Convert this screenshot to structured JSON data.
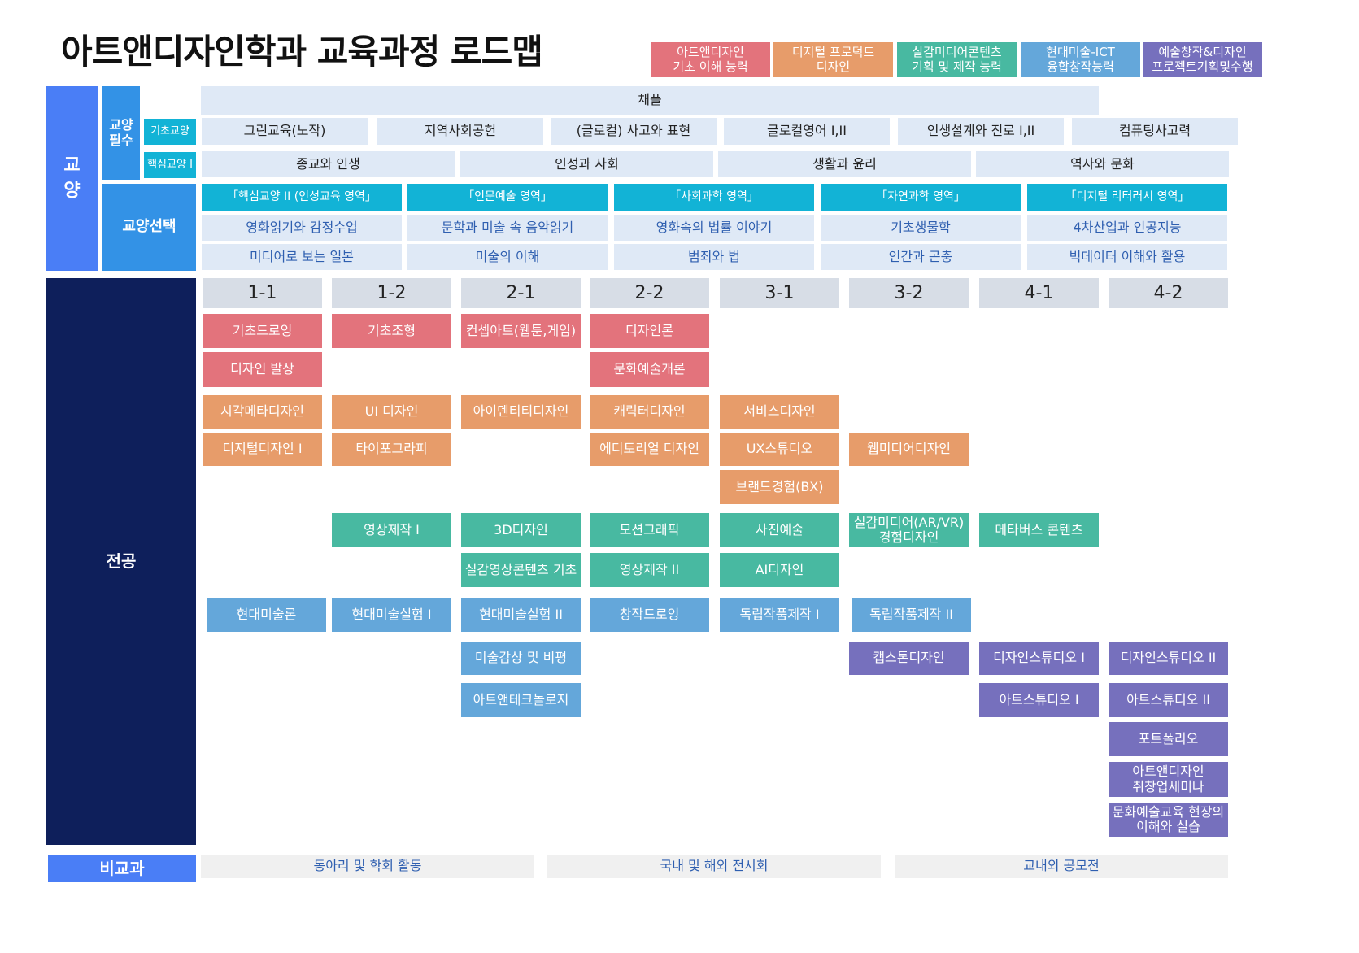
{
  "title": "아트앤디자인학과 교육과정 로드맵",
  "colors": {
    "red": "#e3737c",
    "orange": "#e79c6a",
    "teal": "#48b9a1",
    "blue": "#64a7da",
    "purple": "#7670bd",
    "navy": "#0e1f5b",
    "bright_blue": "#4a7ef6",
    "mid_blue": "#3392e6",
    "cyan": "#12b3d6"
  },
  "legend": [
    {
      "label": "아트앤디자인\n기초 이해 능력",
      "color": "#e3737c"
    },
    {
      "label": "디지털 프로덕트\n디자인",
      "color": "#e79c6a"
    },
    {
      "label": "실감미디어콘텐츠\n기획 및 제작 능력",
      "color": "#48b9a1"
    },
    {
      "label": "현대미술-ICT\n융합창작능력",
      "color": "#64a7da"
    },
    {
      "label": "예술창작&디자인\n프로젝트기획및수행",
      "color": "#7670bd"
    }
  ],
  "sidebar": {
    "general": "교\n양",
    "required": "교양\n필수",
    "elective": "교양선택",
    "basic": "기초교양",
    "core": "핵심교양 I",
    "major": "전공",
    "extra": "비교과"
  },
  "chapel": "채플",
  "basic_courses": [
    "그린교육(노작)",
    "지역사회공헌",
    "(글로컬) 사고와 표현",
    "글로컬영어 I,II",
    "인생설계와 진로 I,II",
    "컴퓨팅사고력"
  ],
  "core_courses": [
    "종교와 인생",
    "인성과 사회",
    "생활과 윤리",
    "역사와 문화"
  ],
  "elective_columns": [
    {
      "header": "「핵심교양 II (인성교육 영역」",
      "items": [
        "영화읽기와 감정수업",
        "미디어로 보는 일본"
      ]
    },
    {
      "header": "「인문예술 영역」",
      "items": [
        "문학과 미술 속 음악읽기",
        "미술의 이해"
      ]
    },
    {
      "header": "「사회과학 영역」",
      "items": [
        "영화속의 법률 이야기",
        "범죄와 법"
      ]
    },
    {
      "header": "「자연과학 영역」",
      "items": [
        "기초생물학",
        "인간과 곤충"
      ]
    },
    {
      "header": "「디지털 리터러시 영역」",
      "items": [
        "4차산업과 인공지능",
        "빅데이터 이해와 활용"
      ]
    }
  ],
  "semesters": [
    "1-1",
    "1-2",
    "2-1",
    "2-2",
    "3-1",
    "3-2",
    "4-1",
    "4-2"
  ],
  "major_courses": [
    {
      "label": "기초드로잉",
      "sem": 0,
      "row": "r1",
      "color": "red"
    },
    {
      "label": "디자인 발상",
      "sem": 0,
      "row": "r2",
      "color": "red"
    },
    {
      "label": "기초조형",
      "sem": 1,
      "row": "r1",
      "color": "red"
    },
    {
      "label": "컨셉아트(웹툰,게임)",
      "sem": 2,
      "row": "r1",
      "color": "red"
    },
    {
      "label": "디자인론",
      "sem": 3,
      "row": "r1",
      "color": "red"
    },
    {
      "label": "문화예술개론",
      "sem": 3,
      "row": "r2",
      "color": "red"
    },
    {
      "label": "시각메타디자인",
      "sem": 0,
      "row": "r3",
      "color": "orange"
    },
    {
      "label": "디지털디자인 I",
      "sem": 0,
      "row": "r4",
      "color": "orange"
    },
    {
      "label": "UI 디자인",
      "sem": 1,
      "row": "r3",
      "color": "orange"
    },
    {
      "label": "타이포그라피",
      "sem": 1,
      "row": "r4",
      "color": "orange"
    },
    {
      "label": "아이덴티티디자인",
      "sem": 2,
      "row": "r3",
      "color": "orange"
    },
    {
      "label": "캐릭터디자인",
      "sem": 3,
      "row": "r3",
      "color": "orange"
    },
    {
      "label": "에디토리얼 디자인",
      "sem": 3,
      "row": "r4",
      "color": "orange"
    },
    {
      "label": "서비스디자인",
      "sem": 4,
      "row": "r3",
      "color": "orange"
    },
    {
      "label": "UX스튜디오",
      "sem": 4,
      "row": "r4",
      "color": "orange"
    },
    {
      "label": "브랜드경험(BX)",
      "sem": 4,
      "row": "r5",
      "color": "orange"
    },
    {
      "label": "웹미디어디자인",
      "sem": 5,
      "row": "r4",
      "color": "orange"
    },
    {
      "label": "영상제작 I",
      "sem": 1,
      "row": "r6",
      "color": "teal"
    },
    {
      "label": "3D디자인",
      "sem": 2,
      "row": "r6",
      "color": "teal"
    },
    {
      "label": "실감영상콘텐츠 기초",
      "sem": 2,
      "row": "r7",
      "color": "teal"
    },
    {
      "label": "모션그래픽",
      "sem": 3,
      "row": "r6",
      "color": "teal"
    },
    {
      "label": "영상제작 II",
      "sem": 3,
      "row": "r7",
      "color": "teal"
    },
    {
      "label": "사진예술",
      "sem": 4,
      "row": "r6",
      "color": "teal"
    },
    {
      "label": "AI디자인",
      "sem": 4,
      "row": "r7",
      "color": "teal"
    },
    {
      "label": "실감미디어(AR/VR)\n경험디자인",
      "sem": 5,
      "row": "r6",
      "color": "teal"
    },
    {
      "label": "메타버스 콘텐츠",
      "sem": 6,
      "row": "r6",
      "color": "teal"
    },
    {
      "label": "현대미술론",
      "sem": 0,
      "row": "r8",
      "color": "blue"
    },
    {
      "label": "현대미술실험 I",
      "sem": 1,
      "row": "r8",
      "color": "blue"
    },
    {
      "label": "현대미술실험 II",
      "sem": 2,
      "row": "r8",
      "color": "blue"
    },
    {
      "label": "미술감상 및 비평",
      "sem": 2,
      "row": "r9",
      "color": "blue"
    },
    {
      "label": "아트앤테크놀로지",
      "sem": 2,
      "row": "r10",
      "color": "blue"
    },
    {
      "label": "창작드로잉",
      "sem": 3,
      "row": "r8",
      "color": "blue"
    },
    {
      "label": "독립작품제작 I",
      "sem": 4,
      "row": "r8",
      "color": "blue"
    },
    {
      "label": "독립작품제작 II",
      "sem": 5,
      "row": "r8",
      "color": "blue"
    },
    {
      "label": "캡스톤디자인",
      "sem": 5,
      "row": "r9",
      "color": "purple"
    },
    {
      "label": "디자인스튜디오 I",
      "sem": 6,
      "row": "r9",
      "color": "purple"
    },
    {
      "label": "아트스튜디오 I",
      "sem": 6,
      "row": "r10",
      "color": "purple"
    },
    {
      "label": "디자인스튜디오 II",
      "sem": 7,
      "row": "r9",
      "color": "purple"
    },
    {
      "label": "아트스튜디오 II",
      "sem": 7,
      "row": "r10",
      "color": "purple"
    },
    {
      "label": "포트폴리오",
      "sem": 7,
      "row": "r11",
      "color": "purple"
    },
    {
      "label": "아트앤디자인\n취창업세미나",
      "sem": 7,
      "row": "r12",
      "color": "purple"
    },
    {
      "label": "문화예술교육 현장의\n이해와 실습",
      "sem": 7,
      "row": "r13",
      "color": "purple"
    }
  ],
  "extracurricular": [
    "동아리 및 학회 활동",
    "국내 및 해외 전시회",
    "교내외 공모전"
  ]
}
